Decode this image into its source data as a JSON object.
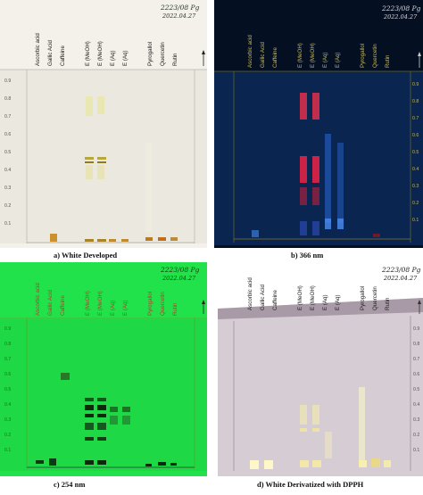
{
  "lanes": [
    "Ascorbic acid",
    "Gallic Acid",
    "Caffeine",
    "E (MeOH)",
    "E (MeOH)",
    "E (Aq)",
    "E (Aq)",
    "Pyrogallol",
    "Quercetin",
    "Rutin"
  ],
  "rf_scale": [
    "0.9",
    "0.8",
    "0.7",
    "0.6",
    "0.5",
    "0.4",
    "0.3",
    "0.2",
    "0.1"
  ],
  "plate_note": [
    "2223/08 Pg",
    "2022.04.27"
  ],
  "panels": [
    {
      "id": "a",
      "caption": "a)   White Developed"
    },
    {
      "id": "b",
      "caption": "b) 366 nm"
    },
    {
      "id": "c",
      "caption": "c)   254 nm"
    },
    {
      "id": "d",
      "caption": "d) White Derivatized with DPPH"
    }
  ],
  "colors": {
    "white_bg": "#f2f0ea",
    "uv366_bg": "#071a30",
    "uv254_bg": "#1fe34a",
    "dpph_bg": "#d6cdd4"
  }
}
